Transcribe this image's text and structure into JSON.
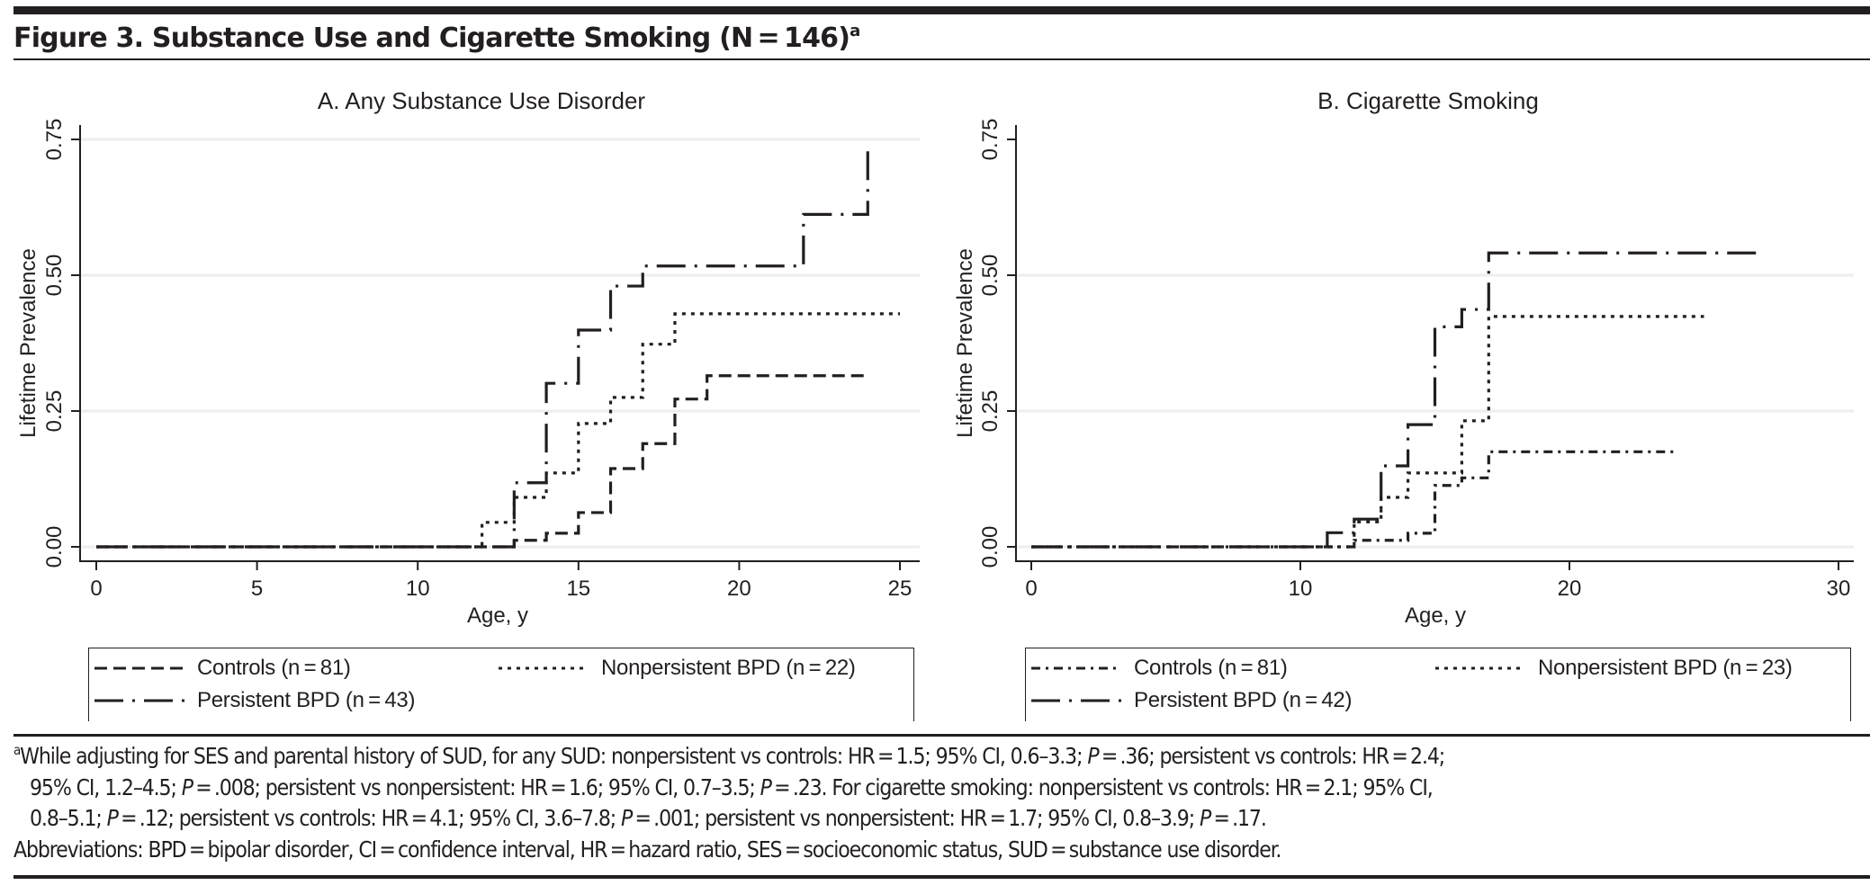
{
  "figure": {
    "title": "Figure 3. Substance Use and Cigarette Smoking (N = 146)",
    "title_superscript": "a"
  },
  "chart_data": [
    {
      "type": "line",
      "step": true,
      "title": "A. Any Substance Use Disorder",
      "xlabel": "Age, y",
      "ylabel": "Lifetime Prevalence",
      "xlim": [
        0,
        25
      ],
      "ylim": [
        0,
        0.75
      ],
      "xticks": [
        "0",
        "5",
        "10",
        "15",
        "20",
        "25"
      ],
      "xtick_values": [
        0,
        5,
        10,
        15,
        20,
        25
      ],
      "yticks": [
        "0.00",
        "0.25",
        "0.50",
        "0.75"
      ],
      "ytick_values": [
        0,
        0.25,
        0.5,
        0.75
      ],
      "grid_y": [
        0,
        0.25,
        0.5,
        0.75
      ],
      "legend_position": "bottom",
      "series": [
        {
          "name": "Controls (n = 81)",
          "style": "dashed",
          "x": [
            0,
            13,
            14,
            15,
            16,
            17,
            18,
            19,
            24
          ],
          "y": [
            0,
            0.012,
            0.025,
            0.063,
            0.144,
            0.19,
            0.272,
            0.315,
            0.315
          ]
        },
        {
          "name": "Nonpersistent BPD (n = 22)",
          "style": "dotted",
          "x": [
            0,
            12,
            13,
            14,
            15,
            16,
            17,
            18,
            25
          ],
          "y": [
            0,
            0.045,
            0.091,
            0.136,
            0.227,
            0.275,
            0.373,
            0.429,
            0.429
          ]
        },
        {
          "name": "Persistent BPD (n = 43)",
          "style": "longdash-dot",
          "x": [
            0,
            13,
            14,
            15,
            16,
            17,
            22,
            24,
            24
          ],
          "y": [
            0,
            0.118,
            0.301,
            0.399,
            0.48,
            0.517,
            0.612,
            0.73,
            0.73
          ]
        }
      ]
    },
    {
      "type": "line",
      "step": true,
      "title": "B. Cigarette Smoking",
      "xlabel": "Age, y",
      "ylabel": "Lifetime Prevalence",
      "xlim": [
        0,
        30
      ],
      "ylim": [
        0,
        0.75
      ],
      "xticks": [
        "0",
        "10",
        "20",
        "30"
      ],
      "xtick_values": [
        0,
        10,
        20,
        30
      ],
      "yticks": [
        "0.00",
        "0.25",
        "0.50",
        "0.75"
      ],
      "ytick_values": [
        0,
        0.25,
        0.5,
        0.75
      ],
      "grid_y": [
        0,
        0.25,
        0.5
      ],
      "legend_position": "bottom",
      "series": [
        {
          "name": "Controls (n = 81)",
          "style": "dash-dot",
          "x": [
            0,
            12,
            14,
            15,
            16,
            17,
            24
          ],
          "y": [
            0,
            0.012,
            0.025,
            0.113,
            0.127,
            0.175,
            0.175
          ]
        },
        {
          "name": "Nonpersistent BPD (n = 23)",
          "style": "dotted",
          "x": [
            0,
            12,
            13,
            14,
            16,
            17,
            25
          ],
          "y": [
            0,
            0.046,
            0.091,
            0.136,
            0.232,
            0.424,
            0.424
          ]
        },
        {
          "name": "Persistent BPD (n = 42)",
          "style": "longdash-dot",
          "x": [
            0,
            11,
            12,
            13,
            14,
            15,
            16,
            17,
            27
          ],
          "y": [
            0,
            0.026,
            0.051,
            0.149,
            0.225,
            0.405,
            0.437,
            0.541,
            0.541
          ]
        }
      ]
    }
  ],
  "footnote": {
    "marker": "a",
    "line1": "While adjusting for SES and parental history of SUD, for any SUD: nonpersistent vs controls: HR = 1.5; 95% CI, 0.6–3.3; ",
    "line1_p": "P",
    "line1_b": " = .36; persistent vs controls: HR = 2.4;",
    "line2": "95% CI, 1.2–4.5; ",
    "line2_p1": "P",
    "line2_b": " = .008; persistent vs nonpersistent: HR = 1.6; 95% CI, 0.7–3.5; ",
    "line2_p2": "P",
    "line2_c": " = .23. For cigarette smoking: nonpersistent vs controls: HR = 2.1; 95% CI,",
    "line3_p1": "P",
    "line3": "0.8–5.1; ",
    "line3_b": " = .12; persistent vs controls: HR = 4.1; 95% CI, 3.6–7.8; ",
    "line3_p2": "P",
    "line3_c": " = .001; persistent vs nonpersistent: HR = 1.7; 95% CI, 0.8–3.9; ",
    "line3_p3": "P",
    "line3_d": " = .17.",
    "abbreviations": "Abbreviations: BPD = bipolar disorder, CI = confidence interval, HR = hazard ratio, SES = socioeconomic status, SUD = substance use disorder."
  },
  "colors": {
    "ink": "#231f20",
    "grid": "#eeeeee"
  }
}
